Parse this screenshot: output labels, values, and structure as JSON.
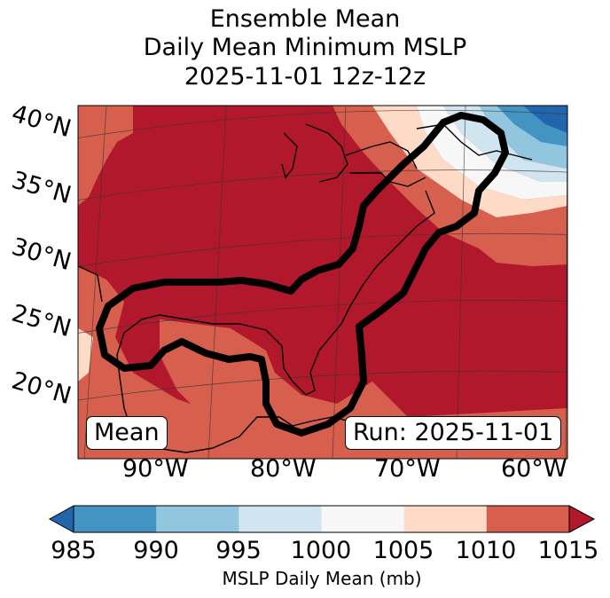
{
  "title": {
    "line1": "Ensemble Mean",
    "line2": "Daily Mean Minimum MSLP",
    "line3": "2025-11-01 12z-12z"
  },
  "map": {
    "lat_labels": [
      "40°N",
      "35°N",
      "30°N",
      "25°N",
      "20°N"
    ],
    "lon_labels": [
      "90°W",
      "80°W",
      "70°W",
      "60°W"
    ],
    "mean_label": "Mean",
    "run_label": "Run: 2025-11-01"
  },
  "colorbar": {
    "ticks": [
      "985",
      "990",
      "995",
      "1000",
      "1005",
      "1010",
      "1015"
    ],
    "label": "MSLP Daily Mean (mb)",
    "colors": [
      "#2166ac",
      "#4393c3",
      "#92c5de",
      "#d1e5f0",
      "#f7f7f7",
      "#fddbc7",
      "#d6604d",
      "#b2182b"
    ]
  }
}
